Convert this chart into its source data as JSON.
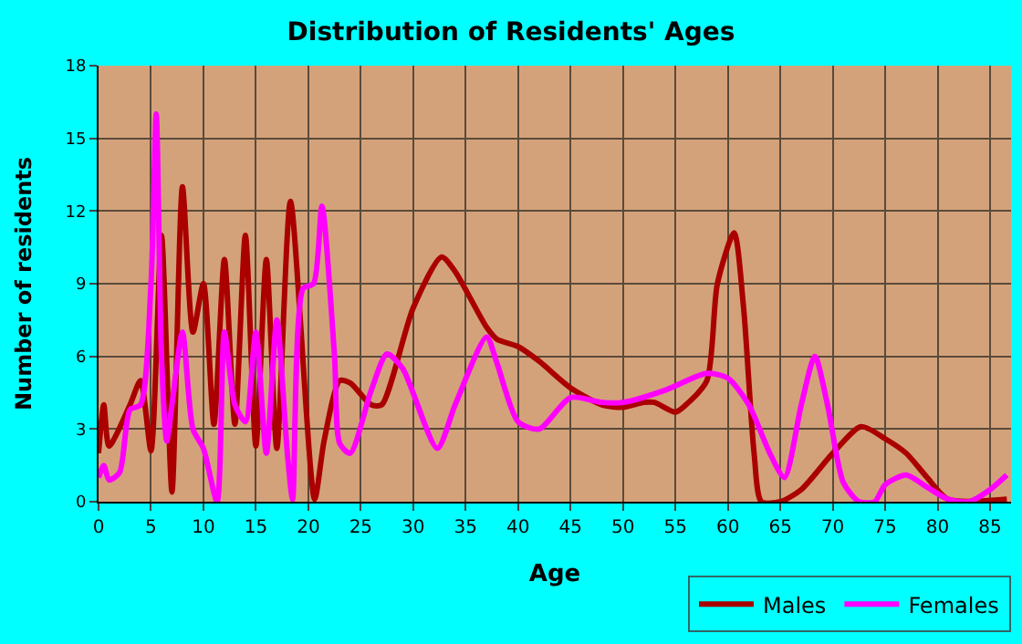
{
  "chart_data": {
    "type": "line",
    "title": "Distribution of Residents' Ages",
    "xlabel": "Age",
    "ylabel": "Number of residents",
    "xlim": [
      0,
      87
    ],
    "xticks": [
      0,
      5,
      10,
      15,
      20,
      25,
      30,
      35,
      40,
      45,
      50,
      55,
      60,
      65,
      70,
      75,
      80,
      85
    ],
    "ylim": [
      0,
      18
    ],
    "yticks": [
      0,
      3,
      6,
      9,
      12,
      15,
      18
    ],
    "grid": true,
    "legend": "bottom right",
    "marker": "none",
    "line_style": "solid",
    "series": [
      {
        "name": "Males",
        "color": "#aa0000",
        "x": [
          0,
          0.5,
          1,
          3,
          4,
          5,
          6,
          7,
          8,
          9,
          10,
          11,
          12,
          13,
          14,
          15,
          16,
          17,
          18.3,
          20.6,
          21.5,
          23,
          24,
          26,
          27,
          30,
          32.7,
          34,
          37,
          38,
          40,
          42,
          45,
          48,
          50,
          52,
          53,
          55,
          56,
          58,
          59,
          60.6,
          61.5,
          62.5,
          63.2,
          65,
          67,
          70,
          72.7,
          75,
          77,
          79,
          81,
          86.6
        ],
        "values": [
          2,
          4,
          2.3,
          4,
          5,
          2.1,
          11,
          0.4,
          13,
          7,
          9,
          3.2,
          10,
          3.2,
          11,
          2.3,
          10,
          2.2,
          12.4,
          0.1,
          2.5,
          5,
          4.9,
          4,
          4,
          8,
          10.1,
          9.5,
          7.2,
          6.7,
          6.4,
          5.8,
          4.7,
          4,
          3.9,
          4.1,
          4.1,
          3.7,
          4,
          5,
          9,
          11.1,
          8,
          2,
          0,
          0,
          0.5,
          2,
          3.1,
          2.6,
          2,
          1,
          0.1,
          0.1
        ]
      },
      {
        "name": "Females",
        "color": "#ff00ff",
        "x": [
          0,
          0.5,
          1,
          2,
          3,
          4,
          5,
          5.5,
          6,
          6.5,
          7,
          8,
          9,
          10,
          11.3,
          12,
          13,
          14,
          15,
          16,
          17,
          18,
          18.5,
          19.5,
          20.5,
          21.3,
          22.5,
          23,
          24,
          26,
          27.5,
          29,
          32.3,
          34,
          37,
          38,
          40,
          42,
          45,
          48,
          50,
          54,
          58,
          60,
          62,
          64,
          65.4,
          67,
          68.3,
          69.5,
          71,
          72.5,
          74,
          75,
          77,
          79,
          81,
          83,
          85,
          86.6
        ],
        "values": [
          1,
          1.5,
          0.9,
          1.2,
          3.8,
          4,
          9,
          16,
          6,
          2.5,
          4,
          7,
          3,
          2.2,
          0,
          7,
          4,
          3.3,
          7,
          2,
          7.5,
          2,
          0.1,
          8.8,
          9,
          12.2,
          6,
          2.4,
          2,
          4.6,
          6.1,
          5.5,
          2.2,
          4,
          6.8,
          5.7,
          3.3,
          3,
          4.3,
          4.1,
          4.1,
          4.6,
          5.3,
          5.1,
          4,
          2,
          1,
          4,
          6,
          4,
          0.8,
          0,
          0,
          0.7,
          1.1,
          0.6,
          0.1,
          0,
          0.5,
          1.1
        ]
      }
    ]
  }
}
